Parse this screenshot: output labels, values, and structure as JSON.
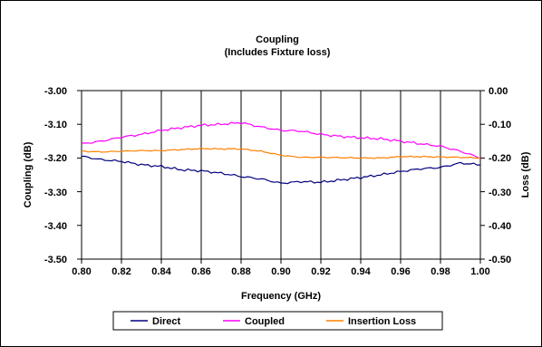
{
  "chart_data": {
    "type": "line",
    "title": "Coupling",
    "subtitle": "(Includes Fixture loss)",
    "xlabel": "Frequency (GHz)",
    "ylabel_left": "Coupling (dB)",
    "ylabel_right": "Loss (dB)",
    "xlim": [
      0.8,
      1.0
    ],
    "ylim_left": [
      -3.5,
      -3.0
    ],
    "ylim_right": [
      -0.5,
      0.0
    ],
    "x_ticks": [
      "0.80",
      "0.82",
      "0.84",
      "0.86",
      "0.88",
      "0.90",
      "0.92",
      "0.94",
      "0.96",
      "0.98",
      "1.00"
    ],
    "y_ticks_left": [
      "-3.00",
      "-3.10",
      "-3.20",
      "-3.30",
      "-3.40",
      "-3.50"
    ],
    "y_ticks_right": [
      "0.00",
      "-0.10",
      "-0.20",
      "-0.30",
      "-0.40",
      "-0.50"
    ],
    "grid": "vertical",
    "legend_position": "bottom",
    "x": [
      0.8,
      0.81,
      0.82,
      0.83,
      0.84,
      0.85,
      0.86,
      0.87,
      0.88,
      0.89,
      0.9,
      0.91,
      0.92,
      0.93,
      0.94,
      0.95,
      0.96,
      0.97,
      0.98,
      0.99,
      1.0
    ],
    "series": [
      {
        "name": "Direct",
        "color": "#000080",
        "axis": "left",
        "values": [
          -3.195,
          -3.205,
          -3.21,
          -3.22,
          -3.225,
          -3.235,
          -3.238,
          -3.245,
          -3.255,
          -3.262,
          -3.275,
          -3.27,
          -3.272,
          -3.265,
          -3.258,
          -3.25,
          -3.24,
          -3.232,
          -3.228,
          -3.215,
          -3.22
        ]
      },
      {
        "name": "Coupled",
        "color": "#ff00ff",
        "axis": "left",
        "values": [
          -3.158,
          -3.15,
          -3.138,
          -3.13,
          -3.118,
          -3.11,
          -3.103,
          -3.1,
          -3.095,
          -3.108,
          -3.118,
          -3.12,
          -3.13,
          -3.136,
          -3.14,
          -3.143,
          -3.15,
          -3.158,
          -3.165,
          -3.18,
          -3.2
        ]
      },
      {
        "name": "Insertion Loss",
        "color": "#ff8000",
        "axis": "right",
        "values": [
          -0.18,
          -0.182,
          -0.18,
          -0.178,
          -0.178,
          -0.175,
          -0.172,
          -0.173,
          -0.173,
          -0.18,
          -0.192,
          -0.198,
          -0.198,
          -0.199,
          -0.2,
          -0.2,
          -0.196,
          -0.196,
          -0.197,
          -0.198,
          -0.2
        ]
      }
    ]
  }
}
